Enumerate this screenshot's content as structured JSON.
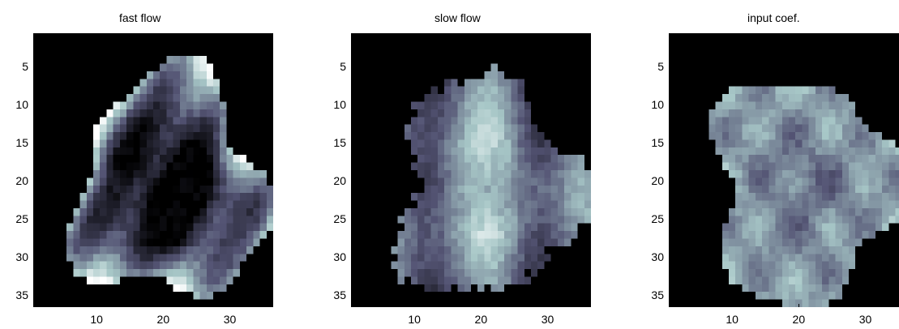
{
  "chart_data": [
    {
      "type": "heatmap",
      "title": "fast flow",
      "xlabel": "",
      "ylabel": "",
      "xlim": [
        0.5,
        36.5
      ],
      "ylim": [
        36.5,
        0.5
      ],
      "xticks": [
        "10",
        "20",
        "30"
      ],
      "yticks": [
        "5",
        "10",
        "15",
        "20",
        "25",
        "30",
        "35"
      ],
      "colormap": "bone",
      "background": "#000000"
    },
    {
      "type": "heatmap",
      "title": "slow flow",
      "xlabel": "",
      "ylabel": "",
      "xlim": [
        0.5,
        36.5
      ],
      "ylim": [
        36.5,
        0.5
      ],
      "xticks": [
        "10",
        "20",
        "30"
      ],
      "yticks": [
        "5",
        "10",
        "15",
        "20",
        "25",
        "30",
        "35"
      ],
      "colormap": "bone",
      "background": "#000000"
    },
    {
      "type": "heatmap",
      "title": "input coef.",
      "xlabel": "",
      "ylabel": "",
      "xlim": [
        0.5,
        36.5
      ],
      "ylim": [
        36.5,
        0.5
      ],
      "xticks": [
        "10",
        "20",
        "30"
      ],
      "yticks": [
        "5",
        "10",
        "15",
        "20",
        "25",
        "30",
        "35"
      ],
      "colormap": "bone",
      "background": "#000000"
    }
  ]
}
